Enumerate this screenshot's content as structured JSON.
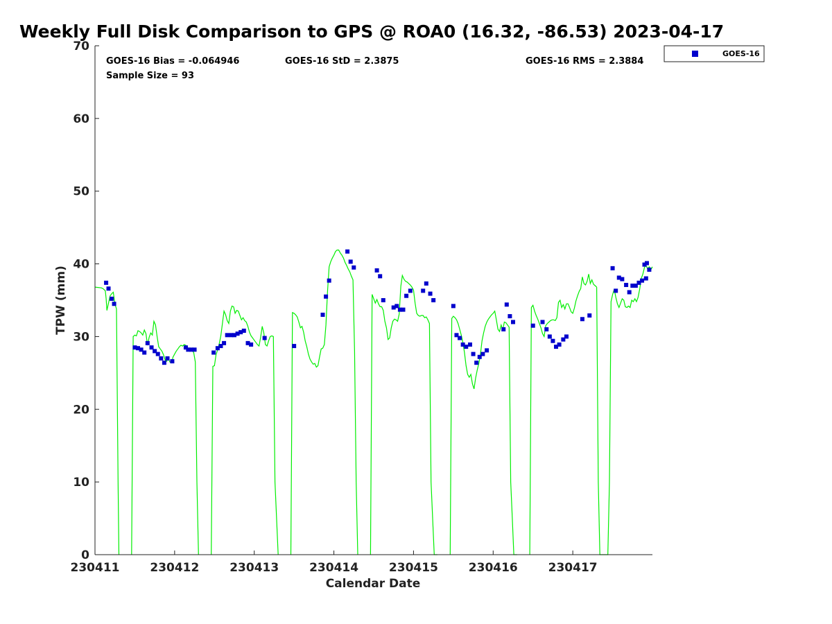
{
  "chart_data": {
    "type": "scatter",
    "title": "Weekly Full Disk Comparison to GPS @ ROA0 (16.32, -86.53) 2023-04-17",
    "xlabel": "Calendar Date",
    "ylabel": "TPW (mm)",
    "xlim": [
      0,
      7
    ],
    "ylim": [
      0,
      70
    ],
    "yticks": [
      0,
      10,
      20,
      30,
      40,
      50,
      60,
      70
    ],
    "xtick_values": [
      0,
      1,
      2,
      3,
      4,
      5,
      6
    ],
    "xtick_labels": [
      "230411",
      "230412",
      "230413",
      "230414",
      "230415",
      "230416",
      "230417"
    ],
    "x_units": "days since 230411 00:00",
    "grid": false,
    "legend_position": "top-right",
    "stats": {
      "bias": "GOES-16 Bias = -0.064946",
      "std": "GOES-16 StD = 2.3875",
      "rms": "GOES-16 RMS = 2.3884",
      "sample_size": "Sample Size = 93"
    },
    "series": [
      {
        "name": "GOES-16",
        "kind": "scatter",
        "color": "#0000cc",
        "x": [
          0.14,
          0.17,
          0.21,
          0.24,
          0.5,
          0.54,
          0.58,
          0.62,
          0.66,
          0.71,
          0.75,
          0.79,
          0.83,
          0.87,
          0.91,
          0.97,
          1.14,
          1.17,
          1.21,
          1.25,
          1.49,
          1.54,
          1.58,
          1.62,
          1.66,
          1.71,
          1.75,
          1.79,
          1.83,
          1.87,
          1.92,
          1.96,
          2.13,
          2.5,
          2.86,
          2.9,
          2.94,
          3.17,
          3.21,
          3.25,
          3.54,
          3.58,
          3.62,
          3.75,
          3.79,
          3.83,
          3.87,
          3.91,
          3.96,
          4.12,
          4.16,
          4.21,
          4.25,
          4.5,
          4.54,
          4.58,
          4.62,
          4.66,
          4.71,
          4.75,
          4.79,
          4.83,
          4.87,
          4.92,
          5.13,
          5.17,
          5.21,
          5.25,
          5.5,
          5.62,
          5.67,
          5.71,
          5.75,
          5.79,
          5.83,
          5.88,
          5.92,
          6.12,
          6.21,
          6.5,
          6.54,
          6.58,
          6.62,
          6.67,
          6.71,
          6.75,
          6.79,
          6.83,
          6.87,
          6.92,
          6.96,
          6.93,
          6.9
        ],
        "y": [
          37.4,
          36.6,
          35.2,
          34.5,
          28.5,
          28.4,
          28.2,
          27.8,
          29.1,
          28.5,
          28.0,
          27.6,
          27.0,
          26.4,
          27.0,
          26.6,
          28.5,
          28.2,
          28.2,
          28.2,
          27.8,
          28.4,
          28.7,
          29.1,
          30.2,
          30.2,
          30.2,
          30.4,
          30.6,
          30.8,
          29.1,
          28.9,
          29.8,
          28.7,
          33.0,
          35.5,
          37.7,
          41.7,
          40.3,
          39.5,
          39.1,
          38.3,
          35.0,
          34.0,
          34.2,
          33.7,
          33.7,
          35.6,
          36.3,
          36.3,
          37.3,
          35.9,
          35.0,
          34.2,
          30.2,
          29.8,
          28.9,
          28.6,
          28.9,
          27.6,
          26.4,
          27.2,
          27.6,
          28.1,
          31.0,
          34.4,
          32.8,
          32.0,
          31.5,
          32.0,
          31.0,
          30.0,
          29.4,
          28.6,
          28.9,
          29.6,
          30.0,
          32.4,
          32.9,
          39.4,
          36.3,
          38.1,
          37.9,
          37.1,
          36.1,
          37.0,
          37.0,
          37.4,
          37.7,
          38.0,
          39.2,
          40.1,
          39.9
        ]
      },
      {
        "name": "GPS",
        "kind": "line",
        "color": "#00ee00",
        "segments": [
          {
            "x": [
              0.0,
              0.08,
              0.1,
              0.13,
              0.14,
              0.15,
              0.17,
              0.19,
              0.21,
              0.23,
              0.25,
              0.27,
              0.29,
              0.3
            ],
            "y": [
              36.8,
              36.7,
              36.6,
              36.3,
              35.2,
              33.6,
              34.6,
              35.6,
              35.9,
              36.1,
              34.5,
              33.8,
              10.0,
              0.0
            ]
          },
          {
            "x": [
              0.46,
              0.48,
              0.5,
              0.52,
              0.54,
              0.56,
              0.58,
              0.6,
              0.62,
              0.64,
              0.66,
              0.68,
              0.7,
              0.72,
              0.74,
              0.76,
              0.78,
              0.8,
              0.82,
              0.84,
              0.86,
              0.88,
              0.9,
              0.92,
              0.94,
              0.96,
              0.98,
              1.0,
              1.02,
              1.04,
              1.06,
              1.08,
              1.1,
              1.12,
              1.14,
              1.16,
              1.18,
              1.2,
              1.22,
              1.24,
              1.26,
              1.28,
              1.3
            ],
            "y": [
              0.0,
              30.0,
              30.2,
              30.1,
              30.8,
              30.7,
              30.5,
              30.2,
              30.9,
              30.4,
              28.8,
              29.9,
              30.5,
              30.2,
              32.1,
              31.6,
              30.0,
              28.6,
              28.3,
              28.0,
              27.5,
              26.8,
              26.6,
              27.0,
              26.5,
              26.4,
              27.2,
              27.6,
              28.0,
              28.3,
              28.6,
              28.8,
              28.7,
              28.9,
              28.8,
              28.6,
              28.2,
              28.0,
              28.1,
              27.8,
              26.5,
              10.0,
              0.0
            ]
          },
          {
            "x": [
              1.46,
              1.48,
              1.5,
              1.52,
              1.54,
              1.56,
              1.58,
              1.6,
              1.62,
              1.64,
              1.66,
              1.68,
              1.7,
              1.72,
              1.74,
              1.76,
              1.78,
              1.8,
              1.82,
              1.84,
              1.86,
              1.88,
              1.9,
              1.92,
              1.94,
              1.96,
              1.98,
              2.0,
              2.02,
              2.04,
              2.06,
              2.08,
              2.1,
              2.12,
              2.14,
              2.16,
              2.18,
              2.2,
              2.22,
              2.24,
              2.26,
              2.28,
              2.3
            ],
            "y": [
              0.0,
              25.9,
              26.0,
              27.5,
              28.2,
              29.0,
              30.1,
              31.8,
              33.5,
              33.0,
              32.2,
              31.8,
              33.5,
              34.2,
              34.1,
              33.2,
              33.6,
              33.5,
              32.9,
              32.3,
              32.6,
              32.2,
              32.0,
              31.4,
              30.6,
              30.1,
              29.8,
              29.5,
              29.2,
              28.9,
              28.7,
              29.9,
              31.4,
              30.5,
              28.9,
              28.7,
              29.4,
              30.0,
              30.1,
              30.0,
              10.0,
              5.0,
              0.0
            ]
          },
          {
            "x": [
              2.46,
              2.48,
              2.5,
              2.52,
              2.54,
              2.56,
              2.58,
              2.6,
              2.62,
              2.64,
              2.66,
              2.68,
              2.7,
              2.72,
              2.74,
              2.76,
              2.78,
              2.8,
              2.82,
              2.84,
              2.86,
              2.88,
              2.9,
              2.92,
              2.94,
              2.96,
              2.98,
              3.0,
              3.02,
              3.04,
              3.06,
              3.08,
              3.1,
              3.12,
              3.14,
              3.16,
              3.18,
              3.2,
              3.22,
              3.24,
              3.26,
              3.28,
              3.3
            ],
            "y": [
              0.0,
              33.3,
              33.2,
              33.0,
              32.7,
              32.0,
              31.2,
              31.4,
              30.6,
              29.4,
              28.6,
              27.6,
              26.9,
              26.5,
              26.2,
              26.3,
              25.8,
              26.0,
              27.2,
              28.3,
              28.4,
              28.9,
              31.6,
              36.2,
              39.6,
              40.3,
              40.8,
              41.2,
              41.7,
              41.9,
              41.9,
              41.5,
              41.2,
              40.8,
              40.2,
              39.8,
              39.3,
              38.9,
              38.3,
              37.8,
              28.0,
              10.0,
              0.0
            ]
          },
          {
            "x": [
              3.46,
              3.48,
              3.5,
              3.52,
              3.54,
              3.56,
              3.58,
              3.6,
              3.62,
              3.64,
              3.66,
              3.68,
              3.7,
              3.72,
              3.74,
              3.76,
              3.78,
              3.8,
              3.82,
              3.84,
              3.86,
              3.88,
              3.9,
              3.92,
              3.94,
              3.96,
              3.98,
              4.0,
              4.02,
              4.04,
              4.06,
              4.08,
              4.1,
              4.12,
              4.14,
              4.16,
              4.18,
              4.2,
              4.22,
              4.24,
              4.26,
              4.28,
              4.3
            ],
            "y": [
              0.0,
              35.8,
              35.2,
              34.6,
              35.1,
              34.5,
              34.1,
              34.1,
              33.6,
              32.1,
              31.2,
              29.6,
              29.8,
              31.2,
              32.1,
              32.4,
              32.3,
              32.1,
              33.1,
              36.9,
              38.4,
              37.9,
              37.6,
              37.5,
              37.3,
              37.1,
              36.8,
              36.4,
              34.6,
              33.2,
              32.9,
              32.8,
              32.9,
              32.9,
              32.6,
              32.7,
              32.3,
              31.8,
              10.0,
              5.0,
              0.0,
              0.0,
              0.0
            ]
          },
          {
            "x": [
              4.46,
              4.48,
              4.5,
              4.52,
              4.54,
              4.56,
              4.58,
              4.6,
              4.62,
              4.64,
              4.66,
              4.68,
              4.7,
              4.72,
              4.74,
              4.76,
              4.78,
              4.8,
              4.82,
              4.84,
              4.86,
              4.88,
              4.9,
              4.92,
              4.94,
              4.96,
              4.98,
              5.0,
              5.02,
              5.04,
              5.06,
              5.08,
              5.1,
              5.12,
              5.14,
              5.16,
              5.18,
              5.2,
              5.22,
              5.24,
              5.26,
              5.28,
              5.3
            ],
            "y": [
              0.0,
              32.5,
              32.8,
              32.6,
              32.3,
              31.8,
              31.0,
              30.2,
              29.2,
              27.8,
              26.0,
              24.8,
              24.4,
              24.8,
              23.5,
              22.8,
              24.3,
              25.4,
              26.3,
              27.5,
              29.4,
              30.5,
              31.4,
              32.0,
              32.4,
              32.7,
              33.0,
              33.2,
              33.5,
              32.3,
              31.0,
              30.7,
              31.6,
              30.9,
              32.0,
              31.9,
              31.6,
              31.3,
              10.0,
              5.0,
              0.0,
              0.0,
              0.0
            ]
          },
          {
            "x": [
              5.46,
              5.48,
              5.5,
              5.52,
              5.54,
              5.56,
              5.58,
              5.6,
              5.62,
              5.64,
              5.66,
              5.68,
              5.7,
              5.72,
              5.74,
              5.76,
              5.78,
              5.8,
              5.82,
              5.84,
              5.86,
              5.88,
              5.9,
              5.92,
              5.94,
              5.96,
              5.98,
              6.0,
              6.02,
              6.04,
              6.06,
              6.08,
              6.1,
              6.12,
              6.14,
              6.16,
              6.18,
              6.2,
              6.22,
              6.24,
              6.26,
              6.28,
              6.3
            ],
            "y": [
              0.0,
              34.0,
              34.3,
              33.5,
              32.9,
              32.4,
              31.8,
              31.2,
              30.4,
              30.0,
              31.5,
              31.8,
              32.0,
              32.2,
              32.3,
              32.3,
              32.2,
              32.6,
              34.7,
              35.0,
              34.0,
              34.4,
              33.8,
              34.5,
              34.5,
              34.0,
              33.4,
              33.2,
              33.9,
              34.9,
              35.6,
              36.2,
              36.6,
              38.2,
              37.3,
              37.1,
              37.6,
              38.6,
              37.3,
              37.8,
              37.2,
              37.0,
              36.8
            ]
          },
          {
            "x": [
              6.3,
              6.32,
              6.34,
              6.44,
              6.46,
              6.48,
              6.5,
              6.52,
              6.54,
              6.56,
              6.58,
              6.6,
              6.62,
              6.64,
              6.66,
              6.68,
              6.7,
              6.72,
              6.74,
              6.76,
              6.78,
              6.8,
              6.82,
              6.84,
              6.86,
              6.88,
              6.9,
              6.92,
              6.94,
              6.96,
              6.98,
              7.0
            ],
            "y": [
              36.8,
              10.0,
              0.0,
              0.0,
              10.0,
              34.8,
              35.8,
              36.5,
              35.4,
              34.5,
              34.0,
              34.6,
              35.2,
              35.0,
              34.1,
              34.0,
              34.2,
              34.0,
              35.0,
              34.8,
              35.2,
              34.8,
              35.4,
              36.5,
              38.0,
              38.6,
              39.5,
              39.8,
              39.3,
              39.6,
              39.2,
              39.6
            ]
          }
        ]
      }
    ]
  }
}
